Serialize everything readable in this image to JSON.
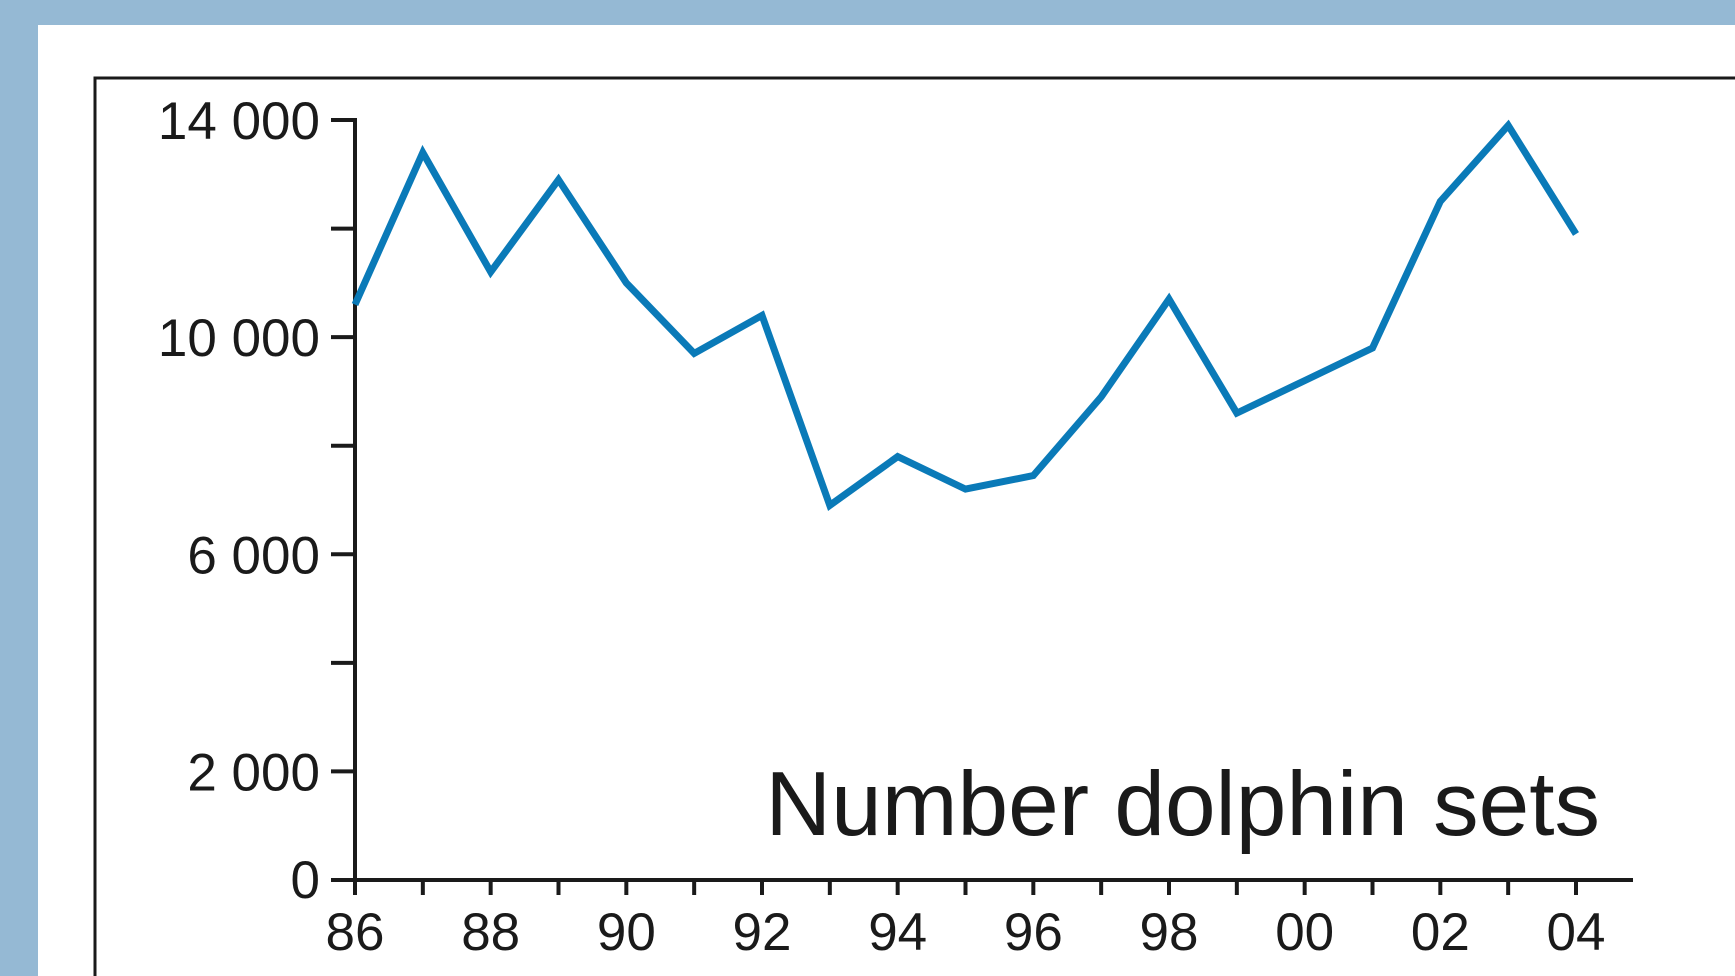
{
  "chart_data": {
    "type": "line",
    "title": "",
    "annotation": "Number dolphin sets",
    "xlabel": "",
    "ylabel": "",
    "x": [
      1986,
      1987,
      1988,
      1989,
      1990,
      1991,
      1992,
      1993,
      1994,
      1995,
      1996,
      1997,
      1998,
      1999,
      2000,
      2001,
      2002,
      2003,
      2004
    ],
    "series": [
      {
        "values": [
          10600,
          13400,
          11200,
          12900,
          11000,
          9700,
          10400,
          6900,
          7800,
          7200,
          7450,
          8900,
          10700,
          8600,
          9200,
          9800,
          12500,
          13900,
          11900
        ],
        "color": "#0a7ab8"
      }
    ],
    "ylim": [
      0,
      14000
    ],
    "y_ticks": [
      0,
      2000,
      4000,
      6000,
      8000,
      10000,
      12000,
      14000
    ],
    "y_tick_labels": [
      {
        "value": 0,
        "label": "0"
      },
      {
        "value": 2000,
        "label": "2 000"
      },
      {
        "value": 6000,
        "label": "6 000"
      },
      {
        "value": 10000,
        "label": "10 000"
      },
      {
        "value": 14000,
        "label": "14 000"
      }
    ],
    "x_tick_labels": [
      {
        "value": 1986,
        "label": "86"
      },
      {
        "value": 1988,
        "label": "88"
      },
      {
        "value": 1990,
        "label": "90"
      },
      {
        "value": 1992,
        "label": "92"
      },
      {
        "value": 1994,
        "label": "94"
      },
      {
        "value": 1996,
        "label": "96"
      },
      {
        "value": 1998,
        "label": "98"
      },
      {
        "value": 2000,
        "label": "00"
      },
      {
        "value": 2002,
        "label": "02"
      },
      {
        "value": 2004,
        "label": "04"
      }
    ],
    "grid": false,
    "legend": "none"
  }
}
